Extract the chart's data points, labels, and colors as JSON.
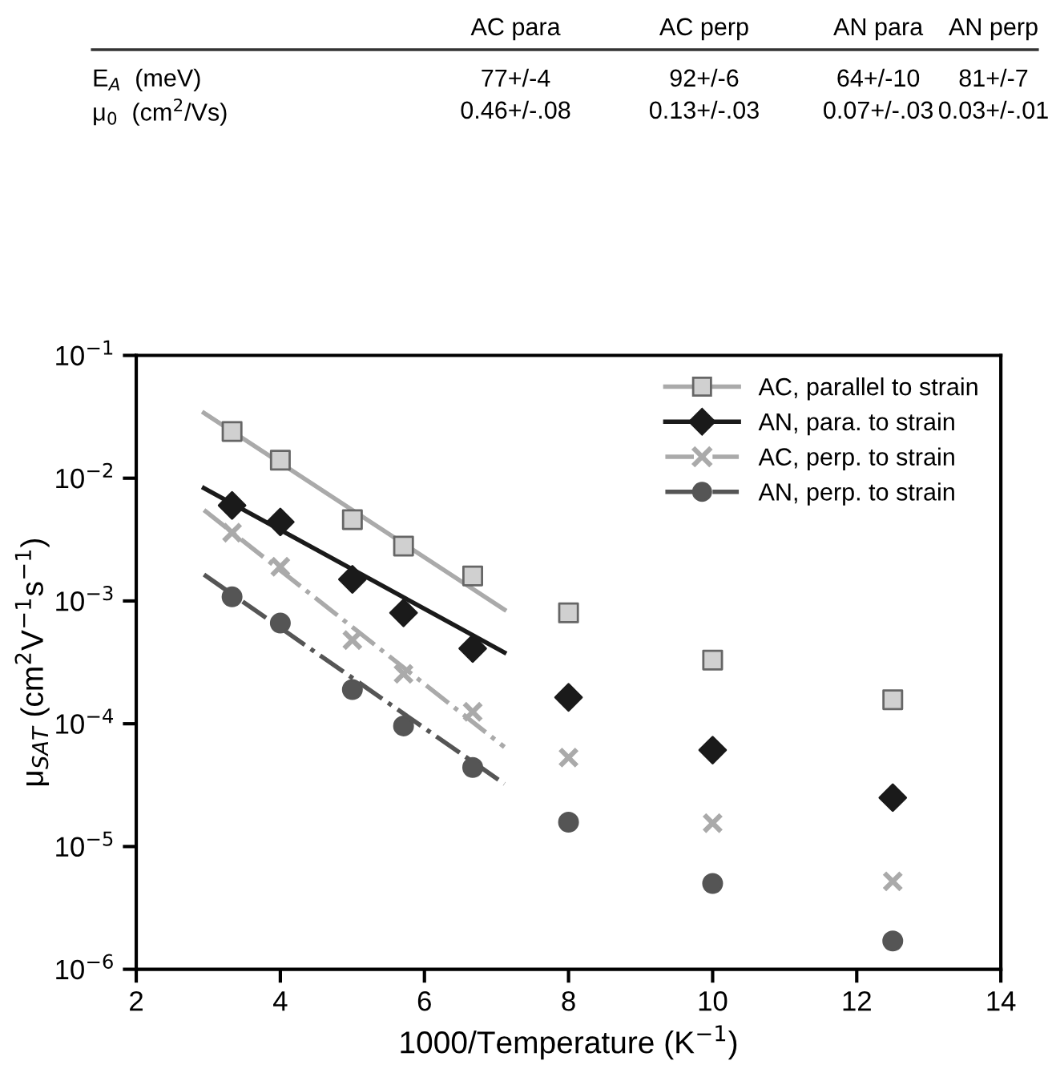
{
  "chart_data": [
    {
      "type": "other",
      "annotations": [
        "AC para",
        "AC perp",
        "AN para",
        "AN perp",
        "E$_{A}$  (meV)",
        "77+/-4",
        "92+/-6",
        "64+/-10",
        "81+/-7",
        "μ$_{0}$  (cm$^{2}$/Vs)",
        "0.46+/-.08",
        "0.13+/-.03",
        "0.07+/-.03",
        "0.03+/-.01"
      ]
    },
    {
      "type": "scatter",
      "xlabel": "1000/Temperature (K$^{−1}$)",
      "ylabel": "μ$_{SAT}$ (cm$^{2}$V$^{−1}$s$^{−1}$)",
      "log": "y",
      "xlim": [
        2,
        14
      ],
      "xticks": [
        2,
        4,
        6,
        8,
        10,
        12,
        14
      ],
      "ylim": [
        1e-06,
        0.1
      ],
      "yticks": [
        {
          "value": 1e-06,
          "label": "10$^{−6}$"
        },
        {
          "value": 1e-05,
          "label": "10$^{−5}$"
        },
        {
          "value": 0.0001,
          "label": "10$^{−4}$"
        },
        {
          "value": 0.001,
          "label": "10$^{−3}$"
        },
        {
          "value": 0.01,
          "label": "10$^{−2}$"
        },
        {
          "value": 0.1,
          "label": "10$^{−1}$"
        }
      ],
      "legend": "top right",
      "grid": false,
      "series": [
        {
          "name": "AC, parallel to strain",
          "color": "#d0d0d0",
          "marker": "square",
          "line_style": "solid",
          "x": [
            3.33,
            4,
            5,
            5.71,
            6.67,
            8,
            10,
            12.5
          ],
          "values": [
            0.024,
            0.014,
            0.0046,
            0.0028,
            0.0016,
            0.0008,
            0.00033,
            0.000157
          ]
        },
        {
          "name": "AN, para. to strain",
          "color": "#1a1a1a",
          "marker": "diamond",
          "line_style": "solid",
          "x": [
            3.33,
            4,
            5,
            5.71,
            6.67,
            8,
            10,
            12.5
          ],
          "values": [
            0.006,
            0.0044,
            0.0015,
            0.0008,
            0.00041,
            0.000164,
            6.1e-05,
            2.5e-05
          ]
        },
        {
          "name": "AC, perp. to strain",
          "color": "#aaaaaa",
          "marker": "cross",
          "line_style": "dashdot",
          "x": [
            3.33,
            4,
            5,
            5.71,
            6.67,
            8,
            10,
            12.5
          ],
          "values": [
            0.0036,
            0.0019,
            0.00048,
            0.000255,
            0.000125,
            5.3e-05,
            1.55e-05,
            5.2e-06
          ]
        },
        {
          "name": "AN, perp. to strain",
          "color": "#555555",
          "marker": "circle",
          "line_style": "dashdot",
          "x": [
            3.33,
            4,
            5,
            5.71,
            6.67,
            8,
            10,
            12.5
          ],
          "values": [
            0.00108,
            0.00066,
            0.00019,
            9.6e-05,
            4.4e-05,
            1.58e-05,
            5e-06,
            1.7e-06
          ]
        },
        {
          "type": "line",
          "color": "#aaaaaa",
          "line_style": "solid",
          "x": [
            2.94,
            7.11
          ],
          "values": [
            0.034,
            0.00085
          ]
        },
        {
          "type": "line",
          "color": "#1a1a1a",
          "line_style": "solid",
          "x": [
            2.94,
            7.11
          ],
          "values": [
            0.0083,
            0.00038
          ]
        },
        {
          "type": "line",
          "color": "#aaaaaa",
          "line_style": "dashdot",
          "x": [
            2.94,
            7.11
          ],
          "values": [
            0.0055,
            6.46e-05
          ]
        },
        {
          "type": "line",
          "color": "#555555",
          "line_style": "dashdot",
          "x": [
            2.94,
            7.11
          ],
          "values": [
            0.00164,
            3.24e-05
          ]
        }
      ]
    }
  ]
}
